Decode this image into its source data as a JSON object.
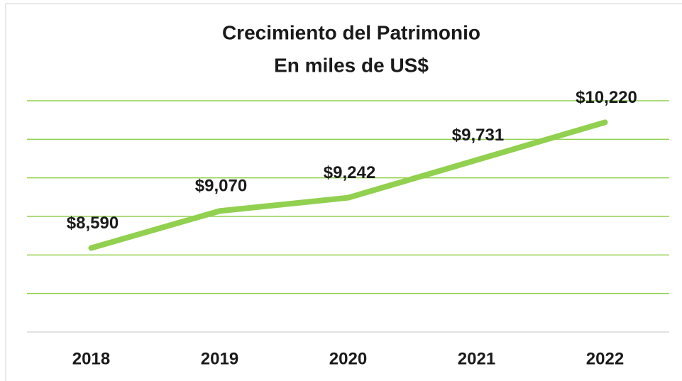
{
  "chart_data": {
    "type": "line",
    "title": "Crecimiento del Patrimonio",
    "subtitle": "En miles de US$",
    "categories": [
      "2018",
      "2019",
      "2020",
      "2021",
      "2022"
    ],
    "values": [
      8590,
      9070,
      9242,
      9731,
      10220
    ],
    "value_labels": [
      "$8,590",
      "$9,070",
      "$9,242",
      "$9,731",
      "$10,220"
    ],
    "color": "#92d050",
    "ylim": [
      7500,
      10500
    ],
    "yticks": [
      7500,
      8000,
      8500,
      9000,
      9500,
      10000,
      10500
    ],
    "grid": true
  }
}
